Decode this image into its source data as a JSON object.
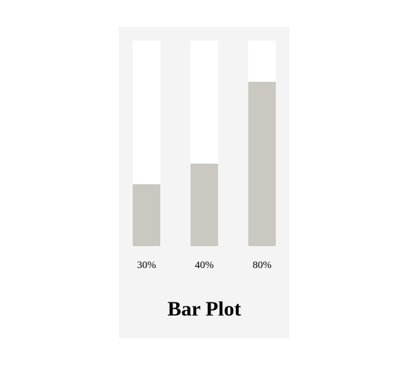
{
  "colors": {
    "panel_background": "#f4f4f4",
    "track_background": "#ffffff",
    "bar_fill": "#cbc8c1"
  },
  "chart_data": {
    "type": "bar",
    "title": "Bar Plot",
    "categories": [
      "30%",
      "40%",
      "80%"
    ],
    "values": [
      30,
      40,
      80
    ],
    "ylim": [
      0,
      100
    ],
    "xlabel": "",
    "ylabel": "",
    "grid": false,
    "legend": "none"
  }
}
